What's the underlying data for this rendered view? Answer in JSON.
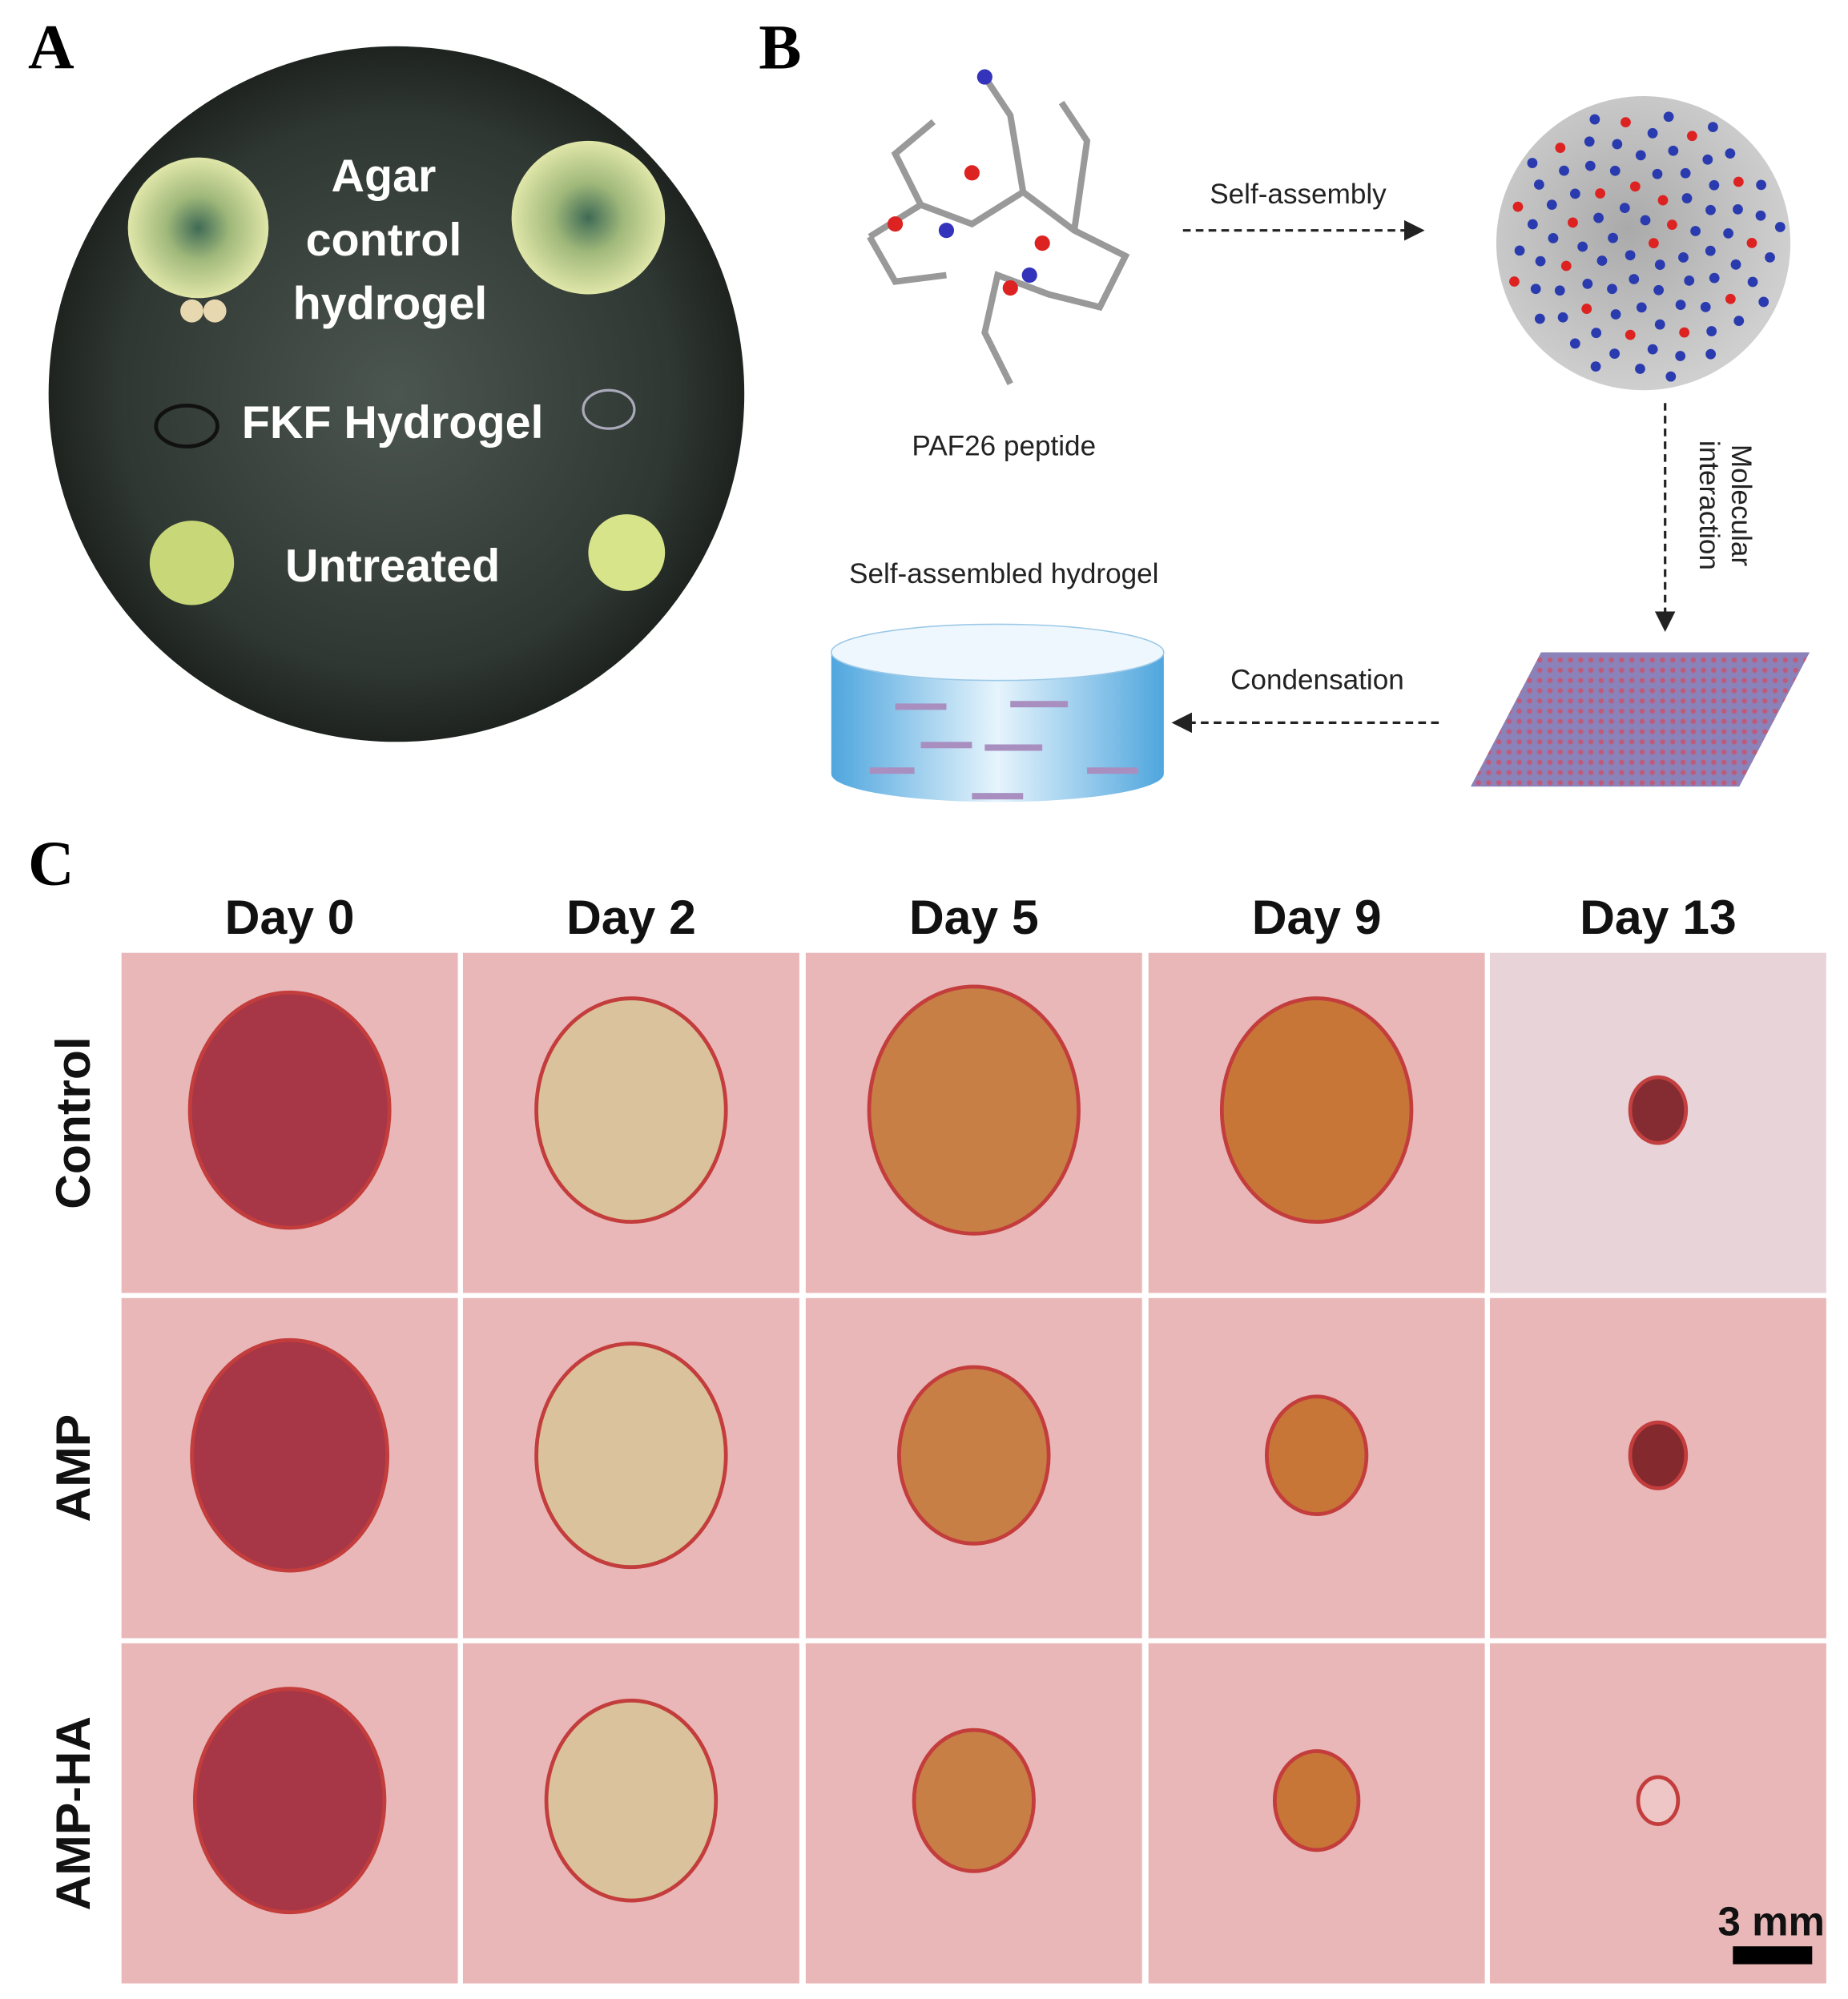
{
  "panel_labels": [
    "A",
    "B",
    "C"
  ],
  "panel_a": {
    "agar_lines": [
      "Agar",
      "control",
      "hydrogel"
    ],
    "fkf": "FKF Hydrogel",
    "untreated": "Untreated"
  },
  "panel_b": {
    "peptide": "PAF26 peptide",
    "self_assembly": "Self-assembly",
    "molecular_interaction": [
      "Molecular",
      "interaction"
    ],
    "hydrogel": "Self-assembled  hydrogel",
    "condensation": "Condensation"
  },
  "panel_c": {
    "columns": [
      "Day 0",
      "Day 2",
      "Day 5",
      "Day 9",
      "Day 13"
    ],
    "rows": [
      "Control",
      "AMP",
      "AMP-HA"
    ],
    "scale_bar": "3 mm"
  }
}
